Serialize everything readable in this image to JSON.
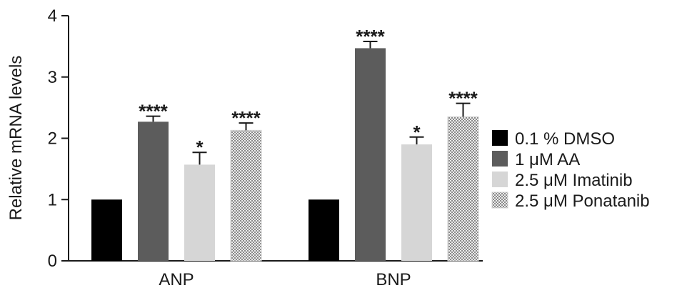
{
  "chart_data": {
    "type": "bar",
    "title": "",
    "xlabel": "",
    "ylabel": "Relative mRNA levels",
    "categories": [
      "ANP",
      "BNP"
    ],
    "ylim": [
      0,
      4
    ],
    "yticks": [
      "0",
      "1",
      "2",
      "3",
      "4"
    ],
    "legend_position": "right",
    "series": [
      {
        "name": "0.1 % DMSO",
        "values": [
          1.0,
          1.0
        ],
        "errors": [
          0,
          0
        ],
        "significance": [
          "",
          ""
        ],
        "color": "#000000",
        "pattern": "solid"
      },
      {
        "name": "1 μM AA",
        "values": [
          2.27,
          3.47
        ],
        "errors": [
          0.09,
          0.11
        ],
        "significance": [
          "****",
          "****"
        ],
        "color": "#5c5c5c",
        "pattern": "solid"
      },
      {
        "name": "2.5 μM Imatinib",
        "values": [
          1.57,
          1.9
        ],
        "errors": [
          0.2,
          0.12
        ],
        "significance": [
          "*",
          "*"
        ],
        "color": "#d6d6d6",
        "pattern": "solid"
      },
      {
        "name": "2.5 μM Ponatanib",
        "values": [
          2.13,
          2.35
        ],
        "errors": [
          0.12,
          0.22
        ],
        "significance": [
          "****",
          "****"
        ],
        "color": "#bdbdbd",
        "pattern": "dotted"
      }
    ]
  }
}
